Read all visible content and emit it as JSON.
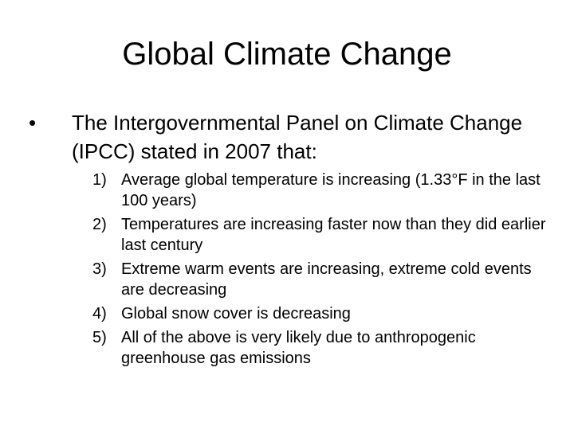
{
  "slide": {
    "title": "Global Climate Change",
    "bullet": {
      "marker": "•",
      "text": "The Intergovernmental Panel on Climate Change (IPCC) stated in 2007 that:"
    },
    "items": [
      {
        "num": "1)",
        "text": "Average global temperature is increasing (1.33°F in the last 100 years)"
      },
      {
        "num": "2)",
        "text": "Temperatures are increasing faster now than they did earlier last century"
      },
      {
        "num": "3)",
        "text": "Extreme warm events are increasing, extreme cold events are decreasing"
      },
      {
        "num": "4)",
        "text": "Global snow cover is decreasing"
      },
      {
        "num": "5)",
        "text": "All of the above is very likely due to anthropogenic greenhouse gas emissions"
      }
    ]
  }
}
